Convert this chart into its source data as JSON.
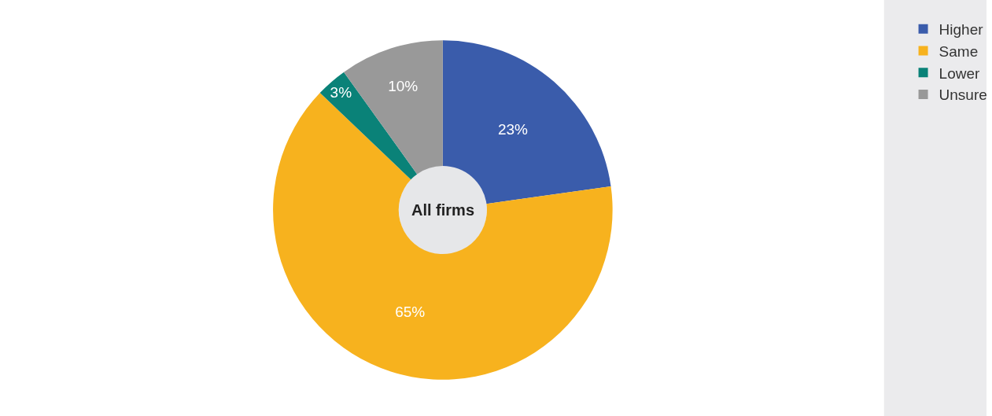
{
  "chart_data": {
    "type": "donut",
    "categories": [
      "Higher",
      "Same",
      "Lower",
      "Unsure"
    ],
    "values": [
      23,
      65,
      3,
      10
    ],
    "colors": [
      "#3a5cab",
      "#f7b21e",
      "#0a8278",
      "#999999"
    ],
    "value_labels": [
      "23%",
      "65%",
      "3%",
      "10%"
    ],
    "annotations": [
      "All firms"
    ],
    "legend": "top right"
  }
}
